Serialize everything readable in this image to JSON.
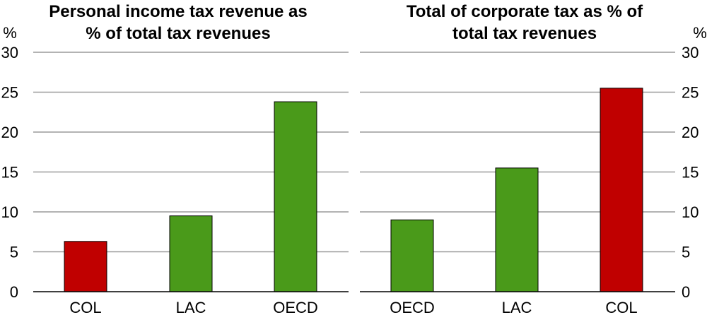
{
  "colors": {
    "highlight": "#c00000",
    "comparison": "#4a9a1a",
    "grid": "#9a9a9a"
  },
  "chart_data": [
    {
      "type": "bar",
      "title_lines": [
        "Personal income tax revenue as",
        "% of total tax revenues"
      ],
      "unit_label": "%",
      "ylim": [
        0,
        30
      ],
      "yticks": [
        0,
        5,
        10,
        15,
        20,
        25,
        30
      ],
      "grid": true,
      "categories": [
        "COL",
        "LAC",
        "OECD"
      ],
      "values": [
        6.3,
        9.5,
        23.8
      ],
      "bar_colors": [
        "#c00000",
        "#4a9a1a",
        "#4a9a1a"
      ]
    },
    {
      "type": "bar",
      "title_lines": [
        "Total of corporate tax as % of",
        "total tax revenues"
      ],
      "unit_label": "%",
      "ylim": [
        0,
        30
      ],
      "yticks": [
        0,
        5,
        10,
        15,
        20,
        25,
        30
      ],
      "grid": true,
      "categories": [
        "OECD",
        "LAC",
        "COL"
      ],
      "values": [
        9.0,
        15.5,
        25.5
      ],
      "bar_colors": [
        "#4a9a1a",
        "#4a9a1a",
        "#c00000"
      ]
    }
  ]
}
